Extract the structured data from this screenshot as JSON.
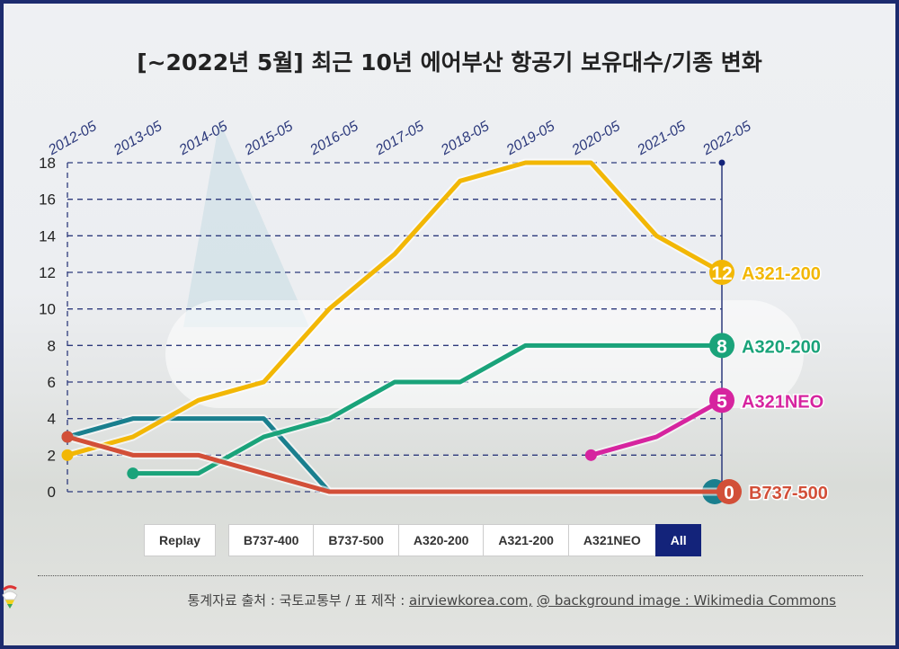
{
  "title": "[~2022년 5월] 최근 10년 에어부산 항공기 보유대수/기종 변화",
  "controls": {
    "replay": "Replay",
    "filters": [
      "B737-400",
      "B737-500",
      "A320-200",
      "A321-200",
      "A321NEO",
      "All"
    ],
    "active": "All"
  },
  "footer": {
    "source_prefix": "통계자료 출처 : 국토교통부 / 표 제작 : ",
    "link1": "airviewkorea.com,",
    "link2": "@ background image : Wikimedia Commons"
  },
  "chart_data": {
    "type": "line",
    "title": "[~2022년 5월] 최근 10년 에어부산 항공기 보유대수/기종 변화",
    "categories": [
      "2012-05",
      "2013-05",
      "2014-05",
      "2015-05",
      "2016-05",
      "2017-05",
      "2018-05",
      "2019-05",
      "2020-05",
      "2021-05",
      "2022-05"
    ],
    "y_ticks": [
      "0",
      "2",
      "4",
      "6",
      "8",
      "10",
      "12",
      "14",
      "16",
      "18"
    ],
    "ylim": [
      0,
      18
    ],
    "grid": true,
    "series": [
      {
        "name": "B737-400",
        "color": "#1a7f8e",
        "values": [
          3,
          4,
          4,
          4,
          0,
          0,
          0,
          0,
          0,
          0,
          0
        ],
        "end_label": ""
      },
      {
        "name": "A321-200",
        "color": "#f2b705",
        "values": [
          2,
          3,
          5,
          6,
          10,
          13,
          17,
          18,
          18,
          14,
          12
        ],
        "end_label": "12"
      },
      {
        "name": "A320-200",
        "color": "#1aa37a",
        "values": [
          null,
          1,
          1,
          3,
          4,
          6,
          6,
          8,
          8,
          8,
          8
        ],
        "end_label": "8"
      },
      {
        "name": "A321NEO",
        "color": "#d6249f",
        "values": [
          null,
          null,
          null,
          null,
          null,
          null,
          null,
          null,
          2,
          3,
          5
        ],
        "end_label": "5"
      },
      {
        "name": "B737-500",
        "color": "#d24f38",
        "values": [
          3,
          2,
          2,
          1,
          0,
          0,
          0,
          0,
          0,
          0,
          0
        ],
        "end_label": "0"
      }
    ]
  }
}
